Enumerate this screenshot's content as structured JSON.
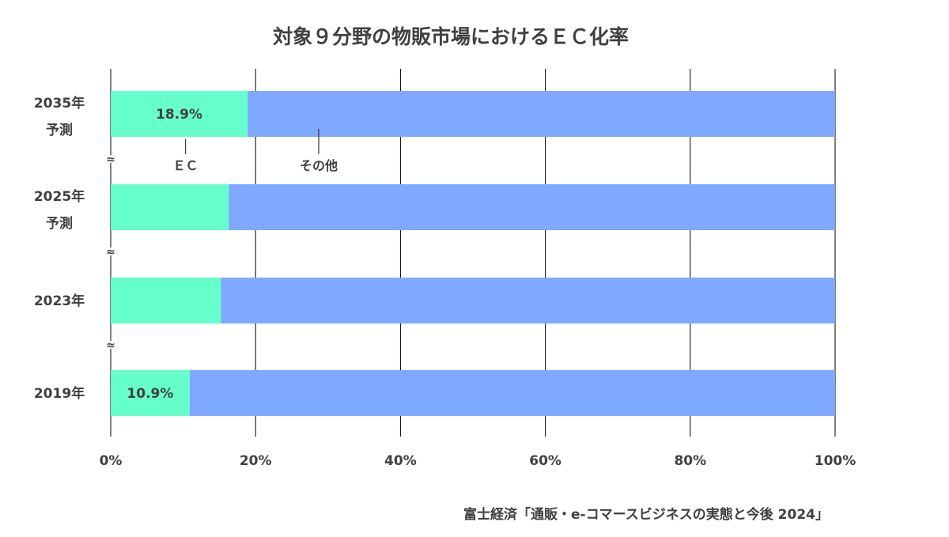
{
  "chart_data": {
    "type": "bar",
    "orientation": "horizontal",
    "stacked": true,
    "title": "対象９分野の物販市場におけるＥＣ化率",
    "categories": [
      {
        "year": "2035年",
        "note": "予測"
      },
      {
        "year": "2025年",
        "note": "予測"
      },
      {
        "year": "2023年",
        "note": ""
      },
      {
        "year": "2019年",
        "note": ""
      }
    ],
    "series": [
      {
        "name": "ＥＣ",
        "color": "#66ffcc",
        "values": [
          18.9,
          16.3,
          15.2,
          10.9
        ]
      },
      {
        "name": "その他",
        "color": "#7fa8ff",
        "values": [
          81.1,
          83.7,
          84.8,
          89.1
        ]
      }
    ],
    "data_labels": [
      "18.9%",
      "",
      "",
      "10.9%"
    ],
    "xlim": [
      0,
      100
    ],
    "x_ticks": [
      0,
      20,
      40,
      60,
      80,
      100
    ],
    "x_tick_labels": [
      "0%",
      "20%",
      "40%",
      "60%",
      "80%",
      "100%"
    ],
    "grid": true,
    "axis_break_marks": "≈",
    "legend": "callout labels under top bar",
    "source": "富士経済「通販・e-コマースビジネスの実態と今後 2024」"
  }
}
